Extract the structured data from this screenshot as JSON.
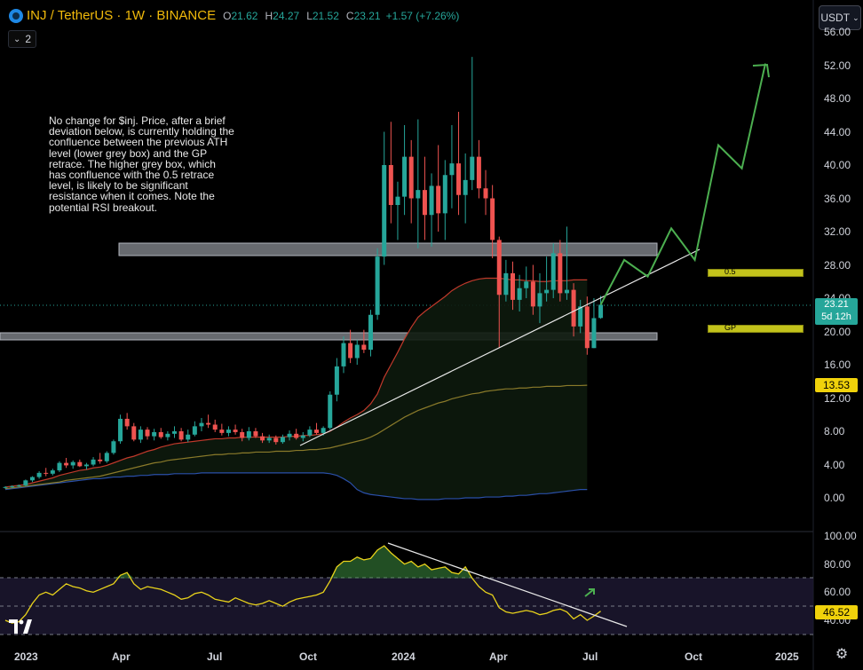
{
  "header": {
    "symbol": "INJ / TetherUS · 1W · BINANCE",
    "open_label": "O",
    "open": "21.62",
    "high_label": "H",
    "high": "24.27",
    "low_label": "L",
    "low": "21.52",
    "close_label": "C",
    "close": "23.21",
    "change": "+1.57 (+7.26%)",
    "indicator_count": "2",
    "currency": "USDT"
  },
  "note": "No change for $inj. Price, after a brief deviation below, is currently holding the confluence between the previous ATH level (lower grey box) and the GP retrace. The higher grey box, which has confluence with the 0.5 retrace level, is likely to be significant resistance when it comes. Note the potential RSI breakout.",
  "price_tag": {
    "price": "23.21",
    "countdown": "5d 12h"
  },
  "ma_tag": "13.53",
  "rsi_tag": "46.52",
  "fib": {
    "level_05": "0.5",
    "level_gp": "GP"
  },
  "colors": {
    "up": "#26a69a",
    "down": "#ef5350",
    "ma": "#f0d20b",
    "projection": "#4caf50"
  },
  "icons": {
    "coin": "inj-coin-icon",
    "chevron": "chevron-down-icon",
    "logo": "tradingview-logo-icon",
    "settings": "gear-icon"
  },
  "chart_data": {
    "type": "candlestick",
    "title": "INJ / TetherUS · 1W · BINANCE",
    "y_ticks": [
      "56.00",
      "52.00",
      "48.00",
      "44.00",
      "40.00",
      "36.00",
      "32.00",
      "28.00",
      "24.00",
      "20.00",
      "16.00",
      "12.00",
      "8.00",
      "4.00",
      "0.00"
    ],
    "rsi_ticks": [
      "100.00",
      "80.00",
      "60.00",
      "40.00"
    ],
    "x_ticks": [
      "2023",
      "Apr",
      "Jul",
      "Oct",
      "2024",
      "Apr",
      "Jul",
      "Oct",
      "2025"
    ],
    "ylim": [
      0,
      56
    ],
    "rsi_ylim": [
      35,
      100
    ],
    "ohlc": [
      [
        1.2,
        1.4,
        1.1,
        1.3
      ],
      [
        1.3,
        1.5,
        1.2,
        1.4
      ],
      [
        1.4,
        1.6,
        1.3,
        1.5
      ],
      [
        1.5,
        2.2,
        1.4,
        2.1
      ],
      [
        2.1,
        2.6,
        1.9,
        2.5
      ],
      [
        2.5,
        3.2,
        2.3,
        3.0
      ],
      [
        3.0,
        3.6,
        2.6,
        2.9
      ],
      [
        2.9,
        3.5,
        2.7,
        3.3
      ],
      [
        3.3,
        4.4,
        3.1,
        4.2
      ],
      [
        4.2,
        4.8,
        3.6,
        3.9
      ],
      [
        3.9,
        4.5,
        3.5,
        4.3
      ],
      [
        4.3,
        4.6,
        3.7,
        3.8
      ],
      [
        3.8,
        4.2,
        3.4,
        4.0
      ],
      [
        4.0,
        4.9,
        3.8,
        4.6
      ],
      [
        4.6,
        5.4,
        4.1,
        4.4
      ],
      [
        4.4,
        5.6,
        4.2,
        5.4
      ],
      [
        5.4,
        7.0,
        5.2,
        6.8
      ],
      [
        6.8,
        10.0,
        6.5,
        9.5
      ],
      [
        9.5,
        10.2,
        8.2,
        8.6
      ],
      [
        8.6,
        9.0,
        6.8,
        7.0
      ],
      [
        7.0,
        8.6,
        6.6,
        8.2
      ],
      [
        8.2,
        8.5,
        7.0,
        7.4
      ],
      [
        7.4,
        8.3,
        6.9,
        7.9
      ],
      [
        7.9,
        8.4,
        7.1,
        7.3
      ],
      [
        7.3,
        8.0,
        6.9,
        7.7
      ],
      [
        7.7,
        8.6,
        7.2,
        8.0
      ],
      [
        8.0,
        8.4,
        6.8,
        7.0
      ],
      [
        7.0,
        8.2,
        6.7,
        7.6
      ],
      [
        7.6,
        9.2,
        7.4,
        8.6
      ],
      [
        8.6,
        9.6,
        8.0,
        9.0
      ],
      [
        9.0,
        10.0,
        8.4,
        8.8
      ],
      [
        8.8,
        9.4,
        7.9,
        8.2
      ],
      [
        8.2,
        8.9,
        7.5,
        7.8
      ],
      [
        7.8,
        8.6,
        7.4,
        8.2
      ],
      [
        8.2,
        8.8,
        7.6,
        7.9
      ],
      [
        7.9,
        8.3,
        6.8,
        7.2
      ],
      [
        7.2,
        8.5,
        6.9,
        8.0
      ],
      [
        8.0,
        8.4,
        7.2,
        7.4
      ],
      [
        7.4,
        7.8,
        6.6,
        6.9
      ],
      [
        6.9,
        7.6,
        6.6,
        7.2
      ],
      [
        7.2,
        7.5,
        6.4,
        6.7
      ],
      [
        6.7,
        7.6,
        6.5,
        7.3
      ],
      [
        7.3,
        8.1,
        6.9,
        7.7
      ],
      [
        7.7,
        8.3,
        7.0,
        7.2
      ],
      [
        7.2,
        7.9,
        6.8,
        7.5
      ],
      [
        7.5,
        8.6,
        7.3,
        8.2
      ],
      [
        8.2,
        9.0,
        7.6,
        7.8
      ],
      [
        7.8,
        8.6,
        7.5,
        8.4
      ],
      [
        8.4,
        12.8,
        8.2,
        12.4
      ],
      [
        12.4,
        16.8,
        11.6,
        15.8
      ],
      [
        15.8,
        19.4,
        15.0,
        18.6
      ],
      [
        18.6,
        20.2,
        16.2,
        16.8
      ],
      [
        16.8,
        19.0,
        16.0,
        18.4
      ],
      [
        18.4,
        20.2,
        17.4,
        17.8
      ],
      [
        17.8,
        22.6,
        17.0,
        22.0
      ],
      [
        22.0,
        30.0,
        21.4,
        29.0
      ],
      [
        29.0,
        44.0,
        28.0,
        40.0
      ],
      [
        40.0,
        45.2,
        33.0,
        35.2
      ],
      [
        35.2,
        38.0,
        31.0,
        36.2
      ],
      [
        36.2,
        44.8,
        34.0,
        41.0
      ],
      [
        41.0,
        43.0,
        33.0,
        36.0
      ],
      [
        36.0,
        45.5,
        30.0,
        37.0
      ],
      [
        37.0,
        41.0,
        31.0,
        34.0
      ],
      [
        34.0,
        39.0,
        30.2,
        37.5
      ],
      [
        37.5,
        42.4,
        32.0,
        34.2
      ],
      [
        34.2,
        40.6,
        31.0,
        38.8
      ],
      [
        38.8,
        44.8,
        34.8,
        40.2
      ],
      [
        40.2,
        46.4,
        34.0,
        36.4
      ],
      [
        36.4,
        41.4,
        33.0,
        38.2
      ],
      [
        38.2,
        53.0,
        37.0,
        41.0
      ],
      [
        41.0,
        43.0,
        36.0,
        37.2
      ],
      [
        37.2,
        39.4,
        34.0,
        36.0
      ],
      [
        36.0,
        37.6,
        28.8,
        31.0
      ],
      [
        31.0,
        31.4,
        18.0,
        24.4
      ],
      [
        24.4,
        28.6,
        23.6,
        27.0
      ],
      [
        27.0,
        28.4,
        22.6,
        23.8
      ],
      [
        23.8,
        26.8,
        22.4,
        25.2
      ],
      [
        25.2,
        27.8,
        24.0,
        26.0
      ],
      [
        26.0,
        28.0,
        22.0,
        23.0
      ],
      [
        23.0,
        27.0,
        21.0,
        24.6
      ],
      [
        24.6,
        29.0,
        23.6,
        25.0
      ],
      [
        25.0,
        30.6,
        24.0,
        29.4
      ],
      [
        29.4,
        31.0,
        23.6,
        24.6
      ],
      [
        24.6,
        32.6,
        23.8,
        25.0
      ],
      [
        25.0,
        25.8,
        19.4,
        20.6
      ],
      [
        20.6,
        23.8,
        19.8,
        23.0
      ],
      [
        23.0,
        24.2,
        17.2,
        18.0
      ],
      [
        18.0,
        24.0,
        18.0,
        21.6
      ],
      [
        21.62,
        24.27,
        21.52,
        23.21
      ]
    ],
    "ma_red": [
      1.3,
      1.4,
      1.5,
      1.6,
      1.8,
      2.0,
      2.2,
      2.4,
      2.7,
      2.9,
      3.1,
      3.3,
      3.4,
      3.6,
      3.7,
      3.9,
      4.2,
      4.5,
      4.8,
      5.0,
      5.3,
      5.6,
      5.8,
      6.1,
      6.3,
      6.5,
      6.6,
      6.7,
      6.8,
      6.9,
      7.0,
      7.1,
      7.1,
      7.2,
      7.2,
      7.3,
      7.3,
      7.3,
      7.3,
      7.3,
      7.3,
      7.3,
      7.4,
      7.4,
      7.5,
      7.5,
      7.6,
      7.7,
      8.0,
      8.5,
      9.1,
      9.6,
      10.0,
      10.5,
      11.3,
      12.5,
      14.5,
      16.0,
      17.5,
      19.1,
      20.5,
      21.7,
      22.4,
      23.0,
      23.6,
      24.2,
      24.9,
      25.4,
      25.8,
      26.1,
      26.3,
      26.4,
      26.4,
      26.4,
      26.3,
      26.2,
      26.2,
      26.1,
      26.1,
      26.0,
      26.0,
      26.1,
      26.1,
      26.1,
      26.2,
      26.2,
      26.2
    ],
    "ma_yellow": [
      1.1,
      1.2,
      1.3,
      1.4,
      1.5,
      1.6,
      1.7,
      1.8,
      1.9,
      2.1,
      2.2,
      2.3,
      2.4,
      2.5,
      2.6,
      2.8,
      3.0,
      3.2,
      3.4,
      3.6,
      3.8,
      4.0,
      4.2,
      4.3,
      4.5,
      4.6,
      4.7,
      4.8,
      4.9,
      5.0,
      5.1,
      5.2,
      5.2,
      5.3,
      5.3,
      5.4,
      5.4,
      5.5,
      5.5,
      5.5,
      5.6,
      5.6,
      5.6,
      5.7,
      5.7,
      5.8,
      5.8,
      5.9,
      6.0,
      6.2,
      6.4,
      6.6,
      6.8,
      7.0,
      7.3,
      7.7,
      8.2,
      8.7,
      9.2,
      9.7,
      10.1,
      10.5,
      10.8,
      11.1,
      11.4,
      11.6,
      11.9,
      12.1,
      12.3,
      12.5,
      12.6,
      12.8,
      12.9,
      13.0,
      13.1,
      13.1,
      13.2,
      13.2,
      13.3,
      13.3,
      13.4,
      13.4,
      13.4,
      13.5,
      13.5,
      13.5,
      13.53
    ],
    "ma_blue": [
      1.0,
      1.1,
      1.2,
      1.3,
      1.4,
      1.5,
      1.6,
      1.7,
      1.8,
      1.9,
      2.0,
      2.1,
      2.2,
      2.3,
      2.3,
      2.4,
      2.5,
      2.5,
      2.6,
      2.6,
      2.7,
      2.7,
      2.8,
      2.8,
      2.8,
      2.9,
      2.9,
      2.9,
      2.9,
      3.0,
      3.0,
      3.0,
      3.0,
      3.0,
      3.0,
      3.0,
      3.0,
      3.0,
      3.0,
      3.0,
      3.0,
      3.0,
      3.0,
      3.0,
      3.0,
      3.0,
      3.0,
      3.0,
      2.9,
      2.7,
      2.3,
      1.8,
      1.0,
      0.6,
      0.4,
      0.3,
      0.2,
      0.1,
      0.0,
      -0.1,
      -0.1,
      -0.2,
      -0.2,
      -0.2,
      -0.2,
      -0.1,
      -0.1,
      -0.1,
      0.0,
      0.0,
      0.0,
      0.1,
      0.1,
      0.1,
      0.2,
      0.2,
      0.3,
      0.3,
      0.4,
      0.5,
      0.5,
      0.6,
      0.7,
      0.8,
      0.9,
      1.0,
      1.0
    ],
    "rsi": [
      40,
      38,
      39,
      44,
      52,
      58,
      60,
      58,
      62,
      66,
      64,
      63,
      61,
      60,
      62,
      64,
      66,
      72,
      74,
      66,
      62,
      64,
      63,
      62,
      60,
      58,
      55,
      56,
      59,
      60,
      58,
      55,
      54,
      53,
      56,
      54,
      52,
      51,
      52,
      54,
      52,
      50,
      53,
      55,
      56,
      57,
      58,
      60,
      68,
      78,
      82,
      82,
      85,
      83,
      84,
      90,
      93,
      88,
      84,
      80,
      82,
      78,
      80,
      76,
      77,
      78,
      74,
      73,
      78,
      70,
      64,
      60,
      58,
      49,
      46,
      45,
      46,
      47,
      46,
      44,
      45,
      47,
      48,
      46,
      41,
      44,
      40,
      43,
      46.52
    ],
    "levels": {
      "upper_box": [
        29.2,
        31.2
      ],
      "lower_box": [
        19.0,
        20.0
      ],
      "fib_05": 27.0,
      "fib_gp": 20.4
    },
    "projection": [
      [
        23.21,
        0
      ],
      [
        28.6,
        1
      ],
      [
        26.6,
        2
      ],
      [
        32.4,
        3
      ],
      [
        28.6,
        4
      ],
      [
        42.4,
        5
      ],
      [
        39.6,
        6
      ],
      [
        52.2,
        7
      ]
    ]
  }
}
